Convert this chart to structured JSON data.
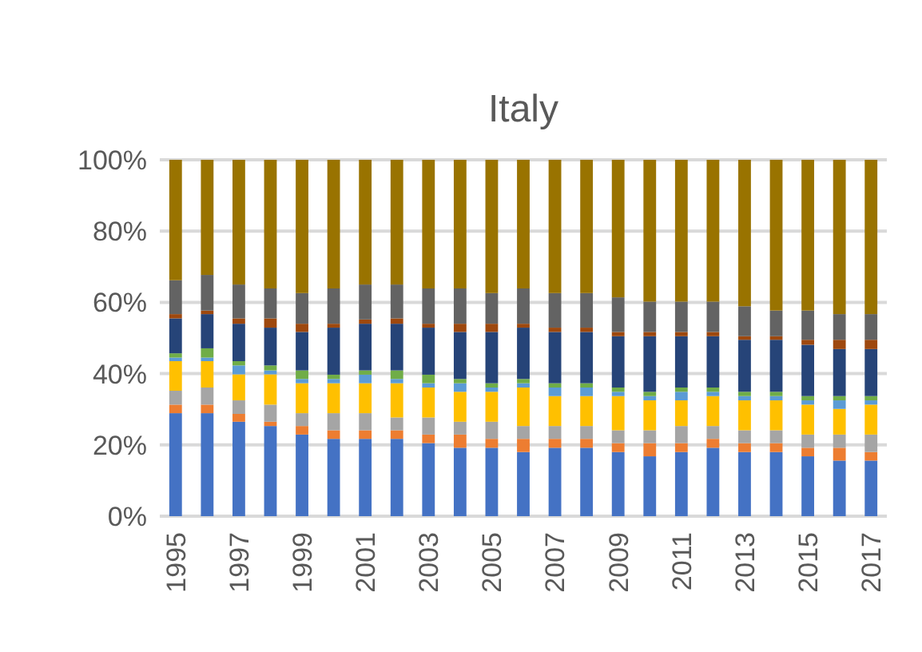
{
  "chart_data": {
    "type": "bar",
    "title": "Italy",
    "stacked": true,
    "grid": "y",
    "categories": [
      "1995",
      null,
      "1997",
      null,
      "1999",
      null,
      "2001",
      null,
      "2003",
      null,
      "2005",
      null,
      "2007",
      null,
      "2009",
      null,
      "2011",
      null,
      "2013",
      null,
      "2015",
      null,
      "2017"
    ],
    "ylim": [
      0,
      100
    ],
    "yticks": [
      {
        "value": 0,
        "label": "0%"
      },
      {
        "value": 20,
        "label": "20%"
      },
      {
        "value": 40,
        "label": "40%"
      },
      {
        "value": 60,
        "label": "60%"
      },
      {
        "value": 80,
        "label": "80%"
      },
      {
        "value": 100,
        "label": "100%"
      }
    ],
    "series": [
      {
        "color": "#4472c4",
        "values": [
          28.9,
          28.9,
          26.5,
          25.3,
          22.9,
          21.7,
          21.7,
          21.7,
          20.5,
          19.2,
          19.2,
          18.0,
          19.2,
          19.2,
          18.0,
          16.8,
          18.0,
          19.2,
          18.0,
          18.0,
          16.8,
          15.6,
          15.6
        ]
      },
      {
        "color": "#ed7d31",
        "values": [
          2.4,
          2.4,
          2.2,
          1.2,
          2.4,
          2.4,
          2.4,
          2.4,
          2.4,
          3.7,
          2.5,
          3.7,
          2.5,
          2.5,
          2.5,
          3.7,
          2.5,
          2.5,
          2.5,
          2.5,
          2.4,
          3.6,
          2.4
        ]
      },
      {
        "color": "#a5a5a5",
        "values": [
          3.9,
          4.8,
          3.8,
          4.8,
          3.6,
          4.8,
          4.8,
          3.6,
          4.8,
          3.6,
          4.8,
          3.6,
          3.6,
          3.6,
          3.6,
          3.6,
          4.8,
          3.6,
          3.6,
          3.6,
          3.7,
          3.7,
          4.9
        ]
      },
      {
        "color": "#ffc000",
        "values": [
          8.3,
          7.4,
          7.3,
          8.5,
          8.4,
          8.4,
          8.4,
          9.6,
          8.4,
          8.4,
          8.4,
          10.8,
          8.4,
          8.4,
          9.6,
          8.4,
          7.2,
          8.4,
          8.4,
          8.4,
          8.4,
          7.2,
          8.4
        ]
      },
      {
        "color": "#5b9bd5",
        "values": [
          1.0,
          1.0,
          2.5,
          1.1,
          1.2,
          1.2,
          2.4,
          1.2,
          1.2,
          2.4,
          1.2,
          1.2,
          2.4,
          2.4,
          1.2,
          1.2,
          2.4,
          1.2,
          1.2,
          1.2,
          1.2,
          2.4,
          1.2
        ]
      },
      {
        "color": "#70ad47",
        "values": [
          1.2,
          2.6,
          1.2,
          1.4,
          2.4,
          1.2,
          1.2,
          2.4,
          2.4,
          1.2,
          1.2,
          1.2,
          1.2,
          1.2,
          1.2,
          1.2,
          1.2,
          1.2,
          1.2,
          1.2,
          1.2,
          1.2,
          1.2
        ]
      },
      {
        "color": "#264478",
        "values": [
          9.8,
          9.6,
          10.5,
          10.6,
          10.8,
          13.2,
          13.1,
          13.1,
          13.2,
          13.2,
          14.4,
          14.4,
          14.4,
          14.4,
          14.4,
          15.6,
          14.4,
          14.4,
          14.6,
          14.6,
          14.4,
          13.2,
          13.2
        ]
      },
      {
        "color": "#9e480e",
        "values": [
          1.2,
          1.0,
          1.5,
          2.6,
          2.3,
          1.1,
          1.2,
          1.5,
          1.1,
          2.3,
          2.3,
          1.1,
          1.2,
          1.2,
          1.2,
          1.2,
          1.2,
          1.2,
          1.0,
          1.0,
          1.4,
          2.6,
          2.6
        ]
      },
      {
        "color": "#636363",
        "values": [
          9.5,
          10.0,
          9.5,
          8.4,
          8.6,
          9.9,
          9.8,
          9.5,
          9.9,
          9.9,
          8.6,
          9.9,
          9.7,
          9.7,
          9.7,
          8.5,
          8.5,
          8.5,
          8.4,
          7.2,
          8.2,
          7.2,
          7.2
        ]
      },
      {
        "color": "#997300",
        "values": [
          33.8,
          32.3,
          35.0,
          36.1,
          37.4,
          36.1,
          35.0,
          35.0,
          36.1,
          36.1,
          37.4,
          36.1,
          37.4,
          37.4,
          38.6,
          39.8,
          39.8,
          39.8,
          41.1,
          42.3,
          42.3,
          43.3,
          43.3
        ]
      }
    ]
  }
}
